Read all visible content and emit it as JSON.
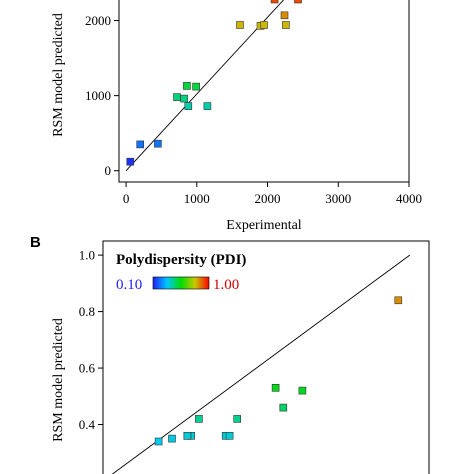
{
  "chart_data": [
    {
      "type": "scatter",
      "panel": "",
      "xlabel": "Experimental",
      "ylabel": "RSM model predicted",
      "xlim": [
        -100,
        4000
      ],
      "ylim": [
        -150,
        2300
      ],
      "x_ticks": [
        "0",
        "1000",
        "2000",
        "3000",
        "4000"
      ],
      "x_tick_values": [
        0,
        1000,
        2000,
        3000,
        4000
      ],
      "y_ticks": [
        "0",
        "1000",
        "2000"
      ],
      "y_tick_values": [
        0,
        1000,
        2000
      ],
      "color_range": [
        50,
        2500
      ],
      "fit_line": [
        [
          0,
          0
        ],
        [
          2300,
          2350
        ]
      ],
      "points": [
        {
          "x": 60,
          "y": 120
        },
        {
          "x": 200,
          "y": 350
        },
        {
          "x": 450,
          "y": 360
        },
        {
          "x": 720,
          "y": 980
        },
        {
          "x": 820,
          "y": 960
        },
        {
          "x": 860,
          "y": 1130
        },
        {
          "x": 880,
          "y": 860
        },
        {
          "x": 990,
          "y": 1120
        },
        {
          "x": 1150,
          "y": 860
        },
        {
          "x": 1610,
          "y": 1940
        },
        {
          "x": 1900,
          "y": 1930
        },
        {
          "x": 1950,
          "y": 1940
        },
        {
          "x": 2100,
          "y": 2280
        },
        {
          "x": 2240,
          "y": 2070
        },
        {
          "x": 2260,
          "y": 1940
        },
        {
          "x": 2430,
          "y": 2280
        }
      ]
    },
    {
      "type": "scatter",
      "panel": "B",
      "xlabel": "",
      "ylabel": "RSM model predicted",
      "ylim": [
        0.2,
        1.05
      ],
      "xlim": [
        0.2,
        1.05
      ],
      "y_ticks": [
        "0.4",
        "0.6",
        "0.8",
        "1.0"
      ],
      "y_tick_values": [
        0.4,
        0.6,
        0.8,
        1.0
      ],
      "colorbar": {
        "title": "Polydispersity (PDI)",
        "min_label": "0.10",
        "max_label": "1.00",
        "min": 0.1,
        "max": 1.0
      },
      "fit_line": [
        [
          0.2,
          0.2
        ],
        [
          1.0,
          1.0
        ]
      ],
      "points": [
        {
          "x": 0.345,
          "y": 0.34
        },
        {
          "x": 0.38,
          "y": 0.35
        },
        {
          "x": 0.43,
          "y": 0.36
        },
        {
          "x": 0.42,
          "y": 0.36
        },
        {
          "x": 0.42,
          "y": 0.36
        },
        {
          "x": 0.45,
          "y": 0.42
        },
        {
          "x": 0.52,
          "y": 0.36
        },
        {
          "x": 0.53,
          "y": 0.36
        },
        {
          "x": 0.55,
          "y": 0.42
        },
        {
          "x": 0.65,
          "y": 0.53
        },
        {
          "x": 0.67,
          "y": 0.46
        },
        {
          "x": 0.72,
          "y": 0.52
        },
        {
          "x": 0.97,
          "y": 0.84
        }
      ]
    }
  ]
}
